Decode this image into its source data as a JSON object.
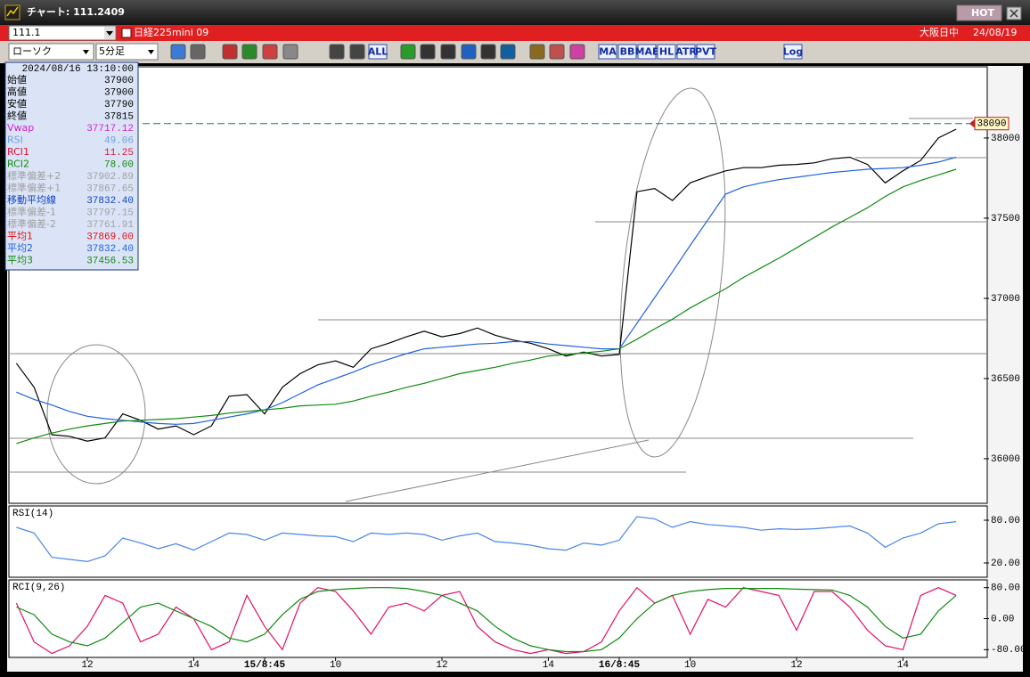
{
  "window": {
    "title": "チャート: 111.2409",
    "hot": "HOT"
  },
  "header": {
    "code": "111.1",
    "name": "日経225mini 09",
    "market": "大阪日中",
    "date": "24/08/19"
  },
  "toolbar": {
    "chart_style": "ローソク",
    "interval": "5分足",
    "buttons": [
      "ALL",
      "MA",
      "BB",
      "MAE",
      "HL",
      "ATR",
      "PVT",
      "Log"
    ]
  },
  "info_panel": {
    "datetime": "2024/08/16 13:10:00",
    "rows": [
      {
        "label": "始値",
        "value": "37900",
        "color": "#000000"
      },
      {
        "label": "高値",
        "value": "37900",
        "color": "#000000"
      },
      {
        "label": "安値",
        "value": "37790",
        "color": "#000000"
      },
      {
        "label": "終値",
        "value": "37815",
        "color": "#000000"
      },
      {
        "label": "Vwap",
        "value": "37717.12",
        "color": "#d020d0"
      },
      {
        "label": "RSI",
        "value": "49.06",
        "color": "#6a9fe0"
      },
      {
        "label": "RCI1",
        "value": "11.25",
        "color": "#e0103a"
      },
      {
        "label": "RCI2",
        "value": "78.00",
        "color": "#108a10"
      },
      {
        "label": "標準偏差+2",
        "value": "37902.89",
        "color": "#a0a0a0"
      },
      {
        "label": "標準偏差+1",
        "value": "37867.65",
        "color": "#a0a0a0"
      },
      {
        "label": "移動平均線",
        "value": "37832.40",
        "color": "#1040c0"
      },
      {
        "label": "標準偏差-1",
        "value": "37797.15",
        "color": "#a0a0a0"
      },
      {
        "label": "標準偏差-2",
        "value": "37761.91",
        "color": "#a0a0a0"
      },
      {
        "label": "平均1",
        "value": "37869.00",
        "color": "#e01010"
      },
      {
        "label": "平均2",
        "value": "37832.40",
        "color": "#2060e0"
      },
      {
        "label": "平均3",
        "value": "37456.53",
        "color": "#108a10"
      }
    ]
  },
  "chart_data": [
    {
      "type": "line",
      "categories": [
        null,
        null,
        null,
        null,
        "12",
        null,
        null,
        null,
        null,
        null,
        "14",
        null,
        null,
        null,
        "15/8:45",
        null,
        null,
        null,
        "10",
        null,
        null,
        null,
        null,
        null,
        "12",
        null,
        null,
        null,
        null,
        null,
        "14",
        null,
        null,
        null,
        "16/8:45",
        null,
        null,
        null,
        "10",
        null,
        null,
        null,
        null,
        null,
        "12",
        null,
        null,
        null,
        null,
        null,
        "14",
        null,
        null,
        null
      ],
      "series": [
        {
          "color": "#000000",
          "values": [
            36595,
            36445,
            36150,
            36140,
            36110,
            36130,
            36280,
            36240,
            36185,
            36205,
            36150,
            36205,
            36390,
            36400,
            36280,
            36445,
            36530,
            36585,
            36610,
            36570,
            36685,
            36720,
            36760,
            36795,
            36760,
            36780,
            36815,
            36770,
            36740,
            36720,
            36685,
            36640,
            36665,
            36640,
            36650,
            37665,
            37685,
            37610,
            37720,
            37760,
            37795,
            37815,
            37815,
            37830,
            37835,
            37845,
            37870,
            37880,
            37835,
            37720,
            37795,
            37860,
            38000,
            38055
          ]
        },
        {
          "color": "#2060e0",
          "values": [
            36415,
            36370,
            36335,
            36295,
            36265,
            36250,
            36240,
            36230,
            36220,
            36215,
            36220,
            36240,
            36260,
            36280,
            36305,
            36350,
            36405,
            36460,
            36500,
            36540,
            36585,
            36620,
            36655,
            36685,
            36695,
            36705,
            36715,
            36720,
            36730,
            36730,
            36715,
            36705,
            36695,
            36685,
            36685,
            36845,
            37005,
            37165,
            37330,
            37490,
            37650,
            37695,
            37720,
            37740,
            37755,
            37770,
            37785,
            37795,
            37805,
            37810,
            37815,
            37830,
            37850,
            37880
          ]
        },
        {
          "color": "#108a10",
          "values": [
            36095,
            36130,
            36160,
            36185,
            36205,
            36220,
            36235,
            36240,
            36245,
            36250,
            36260,
            36270,
            36285,
            36295,
            36305,
            36315,
            36330,
            36335,
            36340,
            36360,
            36390,
            36415,
            36445,
            36470,
            36500,
            36530,
            36550,
            36570,
            36595,
            36615,
            36640,
            36650,
            36660,
            36670,
            36685,
            36745,
            36810,
            36870,
            36940,
            37000,
            37060,
            37130,
            37190,
            37250,
            37315,
            37380,
            37445,
            37505,
            37565,
            37635,
            37695,
            37735,
            37770,
            37805
          ]
        }
      ],
      "ylim": [
        35722,
        38444
      ],
      "yticks": [
        38000,
        37500,
        37000,
        36500,
        36000
      ],
      "last_price": 38090,
      "last_price_color": "#008080"
    },
    {
      "type": "line",
      "title": "RSI(14)",
      "color": "#4a86e8",
      "values": [
        70,
        62,
        28,
        25,
        22,
        30,
        55,
        48,
        40,
        47,
        38,
        50,
        62,
        60,
        52,
        62,
        60,
        58,
        57,
        50,
        62,
        60,
        62,
        60,
        52,
        58,
        62,
        50,
        48,
        45,
        40,
        38,
        48,
        45,
        52,
        85,
        82,
        70,
        78,
        74,
        72,
        70,
        66,
        68,
        67,
        68,
        70,
        72,
        62,
        42,
        55,
        62,
        75,
        78
      ],
      "ylim": [
        0,
        100
      ],
      "yticks": [
        {
          "value": 80,
          "label": "80.00"
        },
        {
          "value": 20,
          "label": "20.00"
        }
      ]
    },
    {
      "type": "line",
      "title": "RCI(9,26)",
      "series": [
        {
          "color": "#e0106a",
          "values": [
            40,
            -60,
            -90,
            -70,
            -20,
            60,
            40,
            -60,
            -40,
            30,
            0,
            -80,
            -60,
            60,
            -20,
            -80,
            40,
            80,
            70,
            20,
            -40,
            30,
            40,
            20,
            60,
            70,
            -20,
            -60,
            -80,
            -90,
            -80,
            -90,
            -85,
            -60,
            20,
            80,
            40,
            60,
            -40,
            50,
            30,
            80,
            70,
            60,
            -30,
            70,
            70,
            30,
            -30,
            -70,
            -80,
            60,
            80,
            60
          ]
        },
        {
          "color": "#108a10",
          "values": [
            30,
            10,
            -40,
            -60,
            -70,
            -50,
            -10,
            30,
            40,
            20,
            0,
            -20,
            -50,
            -60,
            -40,
            10,
            50,
            70,
            75,
            78,
            80,
            80,
            78,
            70,
            60,
            40,
            20,
            -20,
            -50,
            -70,
            -80,
            -85,
            -85,
            -80,
            -50,
            0,
            40,
            60,
            70,
            75,
            78,
            78,
            78,
            78,
            76,
            75,
            74,
            60,
            30,
            -20,
            -50,
            -40,
            20,
            60
          ]
        }
      ],
      "ylim": [
        -100,
        100
      ],
      "yticks": [
        {
          "value": 80,
          "label": "80.00"
        },
        {
          "value": 0,
          "label": "0.00"
        },
        {
          "value": -80,
          "label": "-80.00"
        }
      ]
    }
  ]
}
